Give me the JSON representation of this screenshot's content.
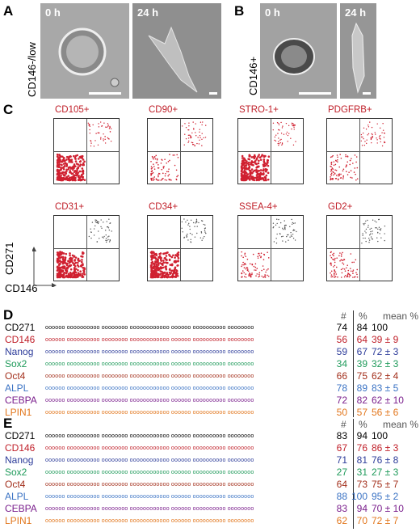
{
  "panels": {
    "A": {
      "letter": "A",
      "side_label": "CD146-/low",
      "img1_time": "0 h",
      "img2_time": "24 h"
    },
    "B": {
      "letter": "B",
      "side_label": "CD146+",
      "img1_time": "0 h",
      "img2_time": "24 h"
    },
    "C": {
      "letter": "C",
      "y_axis": "CD271",
      "x_axis": "CD146",
      "plots": [
        "CD105+",
        "CD90+",
        "STRO-1+",
        "PDGFRB+",
        "CD31+",
        "CD34+",
        "SSEA-4+",
        "GD2+"
      ]
    },
    "D": {
      "letter": "D",
      "col_count": "#",
      "col_pct": "%",
      "col_mean": "mean %",
      "rows": [
        {
          "name": "CD271",
          "count": "74",
          "pct": "84",
          "mean": "100",
          "color": "#000000"
        },
        {
          "name": "CD146",
          "count": "56",
          "pct": "64",
          "mean": "39 ± 9",
          "color": "#c0202a"
        },
        {
          "name": "Nanog",
          "count": "59",
          "pct": "67",
          "mean": "72 ± 3",
          "color": "#2d3c9a"
        },
        {
          "name": "Sox2",
          "count": "34",
          "pct": "39",
          "mean": "32 ± 3",
          "color": "#1e9a5a"
        },
        {
          "name": "Oct4",
          "count": "66",
          "pct": "75",
          "mean": "62 ± 4",
          "color": "#a3301c"
        },
        {
          "name": "ALPL",
          "count": "78",
          "pct": "89",
          "mean": "83 ± 5",
          "color": "#3b73c4"
        },
        {
          "name": "CEBPA",
          "count": "72",
          "pct": "82",
          "mean": "62 ± 10",
          "color": "#7a1e8c"
        },
        {
          "name": "LPIN1",
          "count": "50",
          "pct": "57",
          "mean": "56 ± 6",
          "color": "#e2761c"
        }
      ]
    },
    "E": {
      "letter": "E",
      "col_count": "#",
      "col_pct": "%",
      "col_mean": "mean %",
      "rows": [
        {
          "name": "CD271",
          "count": "83",
          "pct": "94",
          "mean": "100",
          "color": "#000000"
        },
        {
          "name": "CD146",
          "count": "67",
          "pct": "76",
          "mean": "86 ± 3",
          "color": "#c0202a"
        },
        {
          "name": "Nanog",
          "count": "71",
          "pct": "81",
          "mean": "76 ± 8",
          "color": "#2d3c9a"
        },
        {
          "name": "Sox2",
          "count": "27",
          "pct": "31",
          "mean": "27 ± 3",
          "color": "#1e9a5a"
        },
        {
          "name": "Oct4",
          "count": "64",
          "pct": "73",
          "mean": "75 ± 7",
          "color": "#a3301c"
        },
        {
          "name": "ALPL",
          "count": "88",
          "pct": "100",
          "mean": "95 ± 2",
          "color": "#3b73c4"
        },
        {
          "name": "CEBPA",
          "count": "83",
          "pct": "94",
          "mean": "70 ± 10",
          "color": "#7a1e8c"
        },
        {
          "name": "LPIN1",
          "count": "62",
          "pct": "70",
          "mean": "72 ± 7",
          "color": "#e2761c"
        }
      ]
    }
  },
  "colors": {
    "red": "#c0202a",
    "micro_gray": "#9a9a9a"
  }
}
